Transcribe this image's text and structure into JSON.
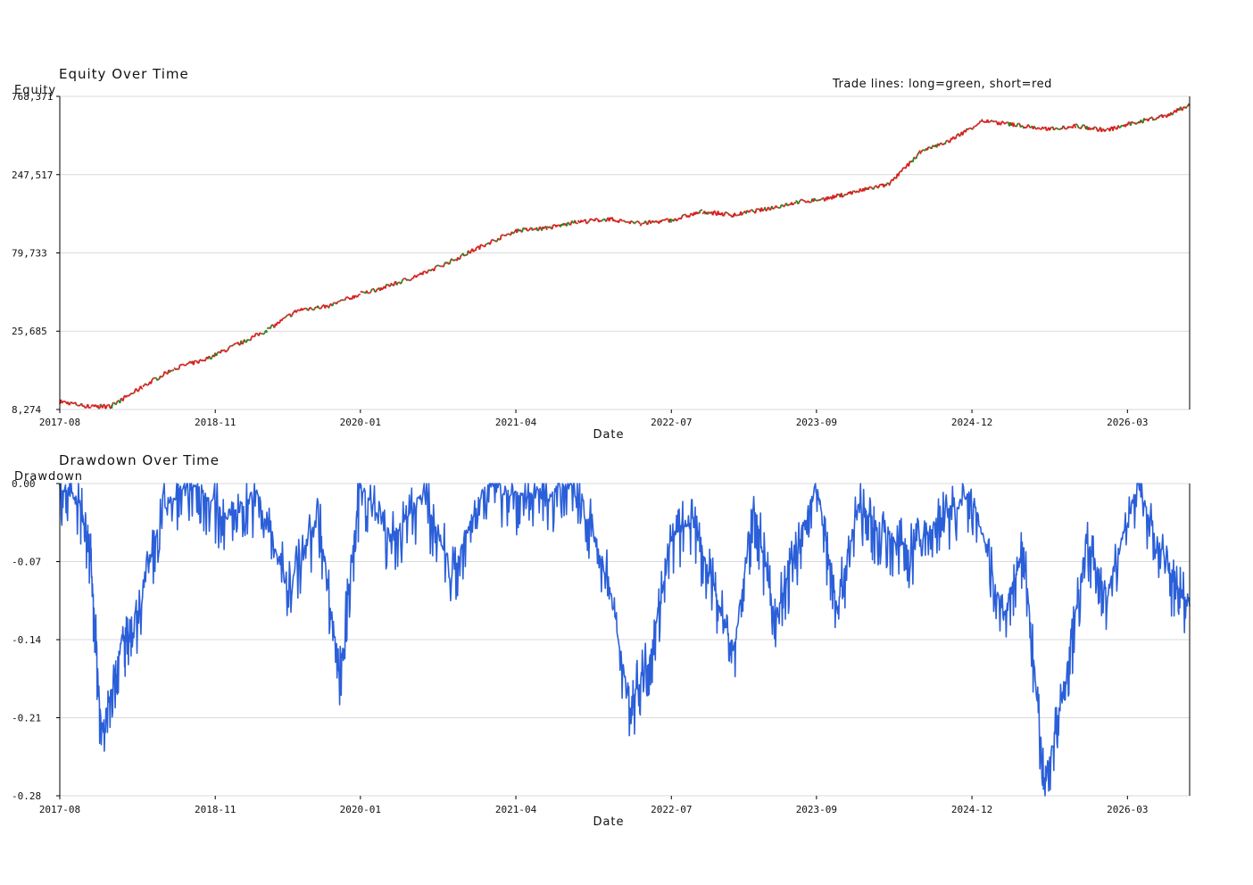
{
  "chart_data": [
    {
      "type": "line",
      "title": "Equity Over Time",
      "xlabel": "Date",
      "ylabel": "Equity",
      "yscale": "log",
      "ylim": [
        8274,
        768371
      ],
      "yticks": [
        "768,371",
        "247,517",
        "79,733",
        "25,685",
        "8,274"
      ],
      "xlim": [
        "2017-08",
        "2026-09"
      ],
      "xticks": [
        "2017-08",
        "2018-11",
        "2020-01",
        "2021-04",
        "2022-07",
        "2023-09",
        "2024-12",
        "2026-03"
      ],
      "annotation": "Trade lines: long=green, short=red",
      "grid": true,
      "colors": {
        "long": "#1f8a1f",
        "short": "#d62020"
      },
      "series": [
        {
          "x": [
            "2017-08",
            "2017-11",
            "2018-01",
            "2018-04",
            "2018-07",
            "2018-10",
            "2019-01",
            "2019-04",
            "2019-07",
            "2019-10",
            "2020-01",
            "2020-04",
            "2020-07",
            "2020-10",
            "2021-01",
            "2021-04",
            "2021-07",
            "2021-10",
            "2022-01",
            "2022-04",
            "2022-07",
            "2022-10",
            "2023-01",
            "2023-04",
            "2023-07",
            "2023-10",
            "2024-01",
            "2024-04",
            "2024-07",
            "2024-10",
            "2025-01",
            "2025-04",
            "2025-07",
            "2025-10",
            "2026-01",
            "2026-04",
            "2026-07",
            "2026-09"
          ],
          "y": [
            9300,
            8600,
            8700,
            11500,
            15000,
            17000,
            21000,
            26000,
            35000,
            37000,
            44000,
            50000,
            59000,
            72000,
            90000,
            110000,
            114000,
            125000,
            130000,
            122000,
            128000,
            145000,
            138000,
            150000,
            166000,
            175000,
            195000,
            215000,
            340000,
            410000,
            540000,
            510000,
            480000,
            500000,
            470000,
            530000,
            590000,
            680000
          ]
        }
      ]
    },
    {
      "type": "line",
      "title": "Drawdown Over Time",
      "xlabel": "Date",
      "ylabel": "Drawdown",
      "ylim": [
        -0.28,
        0.0
      ],
      "yticks": [
        "0.00",
        "-0.07",
        "-0.14",
        "-0.21",
        "-0.28"
      ],
      "xlim": [
        "2017-08",
        "2026-09"
      ],
      "xticks": [
        "2017-08",
        "2018-11",
        "2020-01",
        "2021-04",
        "2022-07",
        "2023-09",
        "2024-12",
        "2026-03"
      ],
      "grid": true,
      "colors": {
        "line": "#2b5fd9"
      },
      "series": [
        {
          "x": [
            "2017-08",
            "2017-10",
            "2017-11",
            "2017-12",
            "2018-02",
            "2018-03",
            "2018-06",
            "2018-09",
            "2018-12",
            "2019-03",
            "2019-06",
            "2019-09",
            "2019-11",
            "2020-01",
            "2020-04",
            "2020-07",
            "2020-10",
            "2021-01",
            "2021-04",
            "2021-07",
            "2021-10",
            "2022-01",
            "2022-03",
            "2022-05",
            "2022-07",
            "2022-09",
            "2022-11",
            "2023-01",
            "2023-03",
            "2023-05",
            "2023-07",
            "2023-09",
            "2023-11",
            "2024-01",
            "2024-03",
            "2024-06",
            "2024-09",
            "2024-12",
            "2025-03",
            "2025-05",
            "2025-07",
            "2025-09",
            "2025-11",
            "2026-01",
            "2026-04",
            "2026-07",
            "2026-09"
          ],
          "y": [
            0.0,
            -0.02,
            -0.07,
            -0.22,
            -0.14,
            -0.14,
            -0.02,
            0.0,
            -0.03,
            -0.01,
            -0.09,
            -0.03,
            -0.17,
            0.0,
            -0.05,
            -0.01,
            -0.08,
            0.0,
            -0.01,
            -0.01,
            0.0,
            -0.09,
            -0.2,
            -0.15,
            -0.05,
            -0.03,
            -0.09,
            -0.15,
            -0.02,
            -0.12,
            -0.06,
            0.0,
            -0.11,
            -0.02,
            -0.04,
            -0.06,
            -0.03,
            -0.01,
            -0.12,
            -0.06,
            -0.27,
            -0.18,
            -0.05,
            -0.1,
            0.0,
            -0.08,
            -0.11
          ]
        }
      ]
    }
  ]
}
